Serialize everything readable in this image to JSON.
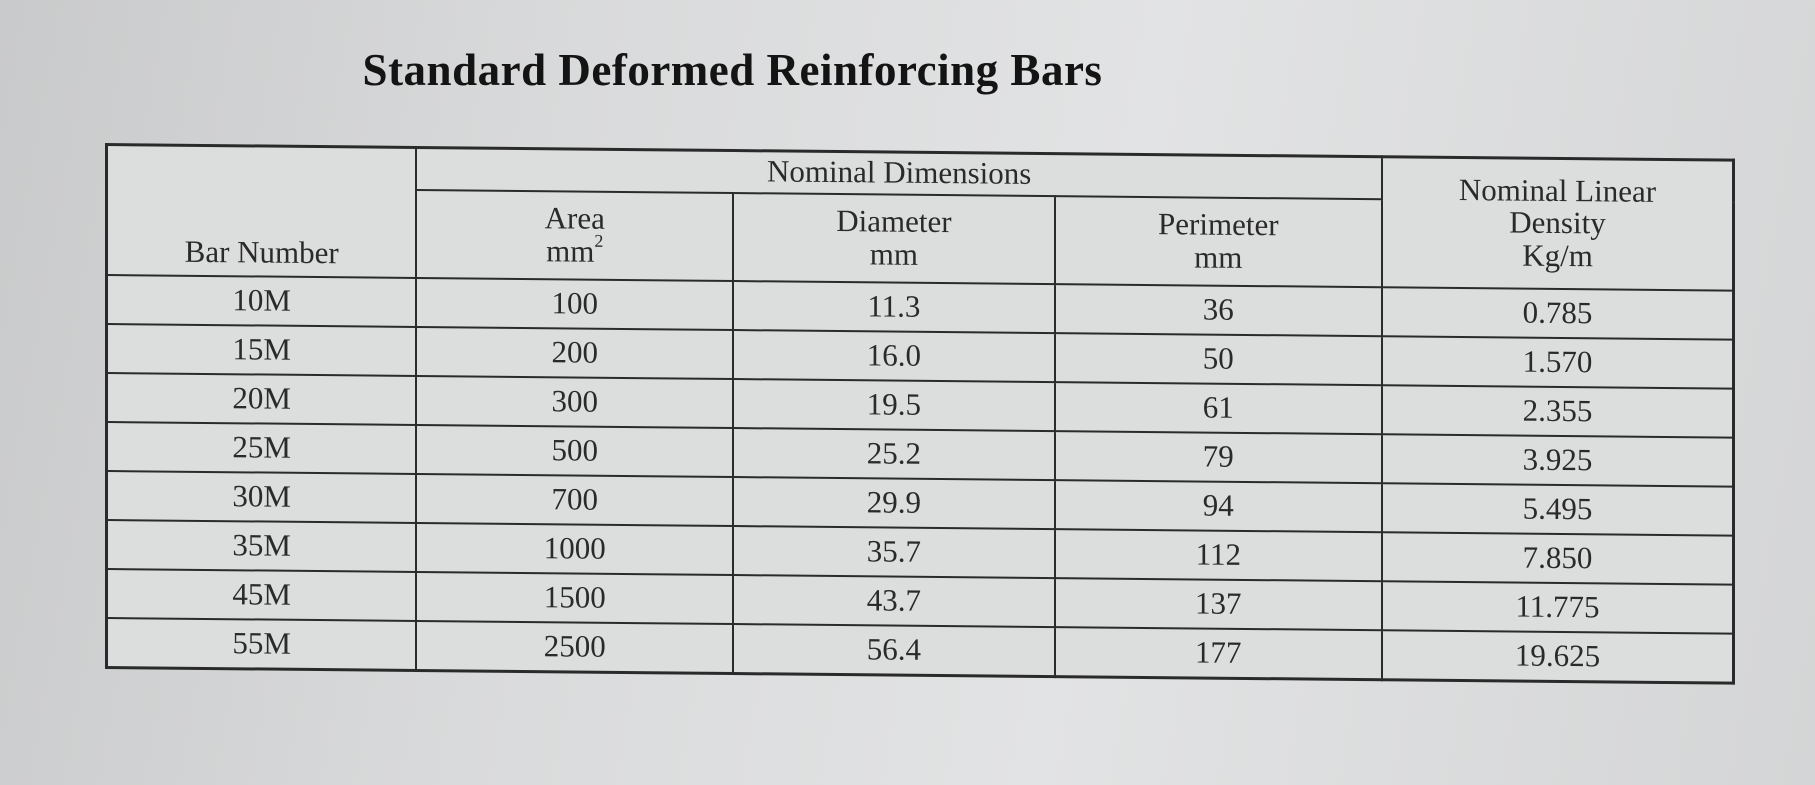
{
  "title": "Standard Deformed Reinforcing Bars",
  "headers": {
    "bar_number": "Bar Number",
    "nominal_dimensions": "Nominal Dimensions",
    "area": {
      "label": "Area",
      "unit": "mm",
      "unit_sup": "2"
    },
    "diameter": {
      "label": "Diameter",
      "unit": "mm"
    },
    "perimeter": {
      "label": "Perimeter",
      "unit": "mm"
    },
    "density": {
      "line1": "Nominal Linear",
      "line2": "Density",
      "unit": "Kg/m"
    }
  },
  "rows": [
    {
      "bar": "10M",
      "area": "100",
      "diameter": "11.3",
      "perimeter": "36",
      "density": "0.785"
    },
    {
      "bar": "15M",
      "area": "200",
      "diameter": "16.0",
      "perimeter": "50",
      "density": "1.570"
    },
    {
      "bar": "20M",
      "area": "300",
      "diameter": "19.5",
      "perimeter": "61",
      "density": "2.355"
    },
    {
      "bar": "25M",
      "area": "500",
      "diameter": "25.2",
      "perimeter": "79",
      "density": "3.925"
    },
    {
      "bar": "30M",
      "area": "700",
      "diameter": "29.9",
      "perimeter": "94",
      "density": "5.495"
    },
    {
      "bar": "35M",
      "area": "1000",
      "diameter": "35.7",
      "perimeter": "112",
      "density": "7.850"
    },
    {
      "bar": "45M",
      "area": "1500",
      "diameter": "43.7",
      "perimeter": "137",
      "density": "11.775"
    },
    {
      "bar": "55M",
      "area": "2500",
      "diameter": "56.4",
      "perimeter": "177",
      "density": "19.625"
    }
  ]
}
